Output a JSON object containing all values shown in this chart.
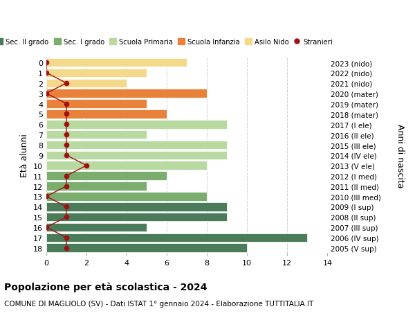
{
  "ages": [
    18,
    17,
    16,
    15,
    14,
    13,
    12,
    11,
    10,
    9,
    8,
    7,
    6,
    5,
    4,
    3,
    2,
    1,
    0
  ],
  "years": [
    "2005 (V sup)",
    "2006 (IV sup)",
    "2007 (III sup)",
    "2008 (II sup)",
    "2009 (I sup)",
    "2010 (III med)",
    "2011 (II med)",
    "2012 (I med)",
    "2013 (V ele)",
    "2014 (IV ele)",
    "2015 (III ele)",
    "2016 (II ele)",
    "2017 (I ele)",
    "2018 (mater)",
    "2019 (mater)",
    "2020 (mater)",
    "2021 (nido)",
    "2022 (nido)",
    "2023 (nido)"
  ],
  "values": [
    10,
    13,
    5,
    9,
    9,
    8,
    5,
    6,
    8,
    9,
    9,
    5,
    9,
    6,
    5,
    8,
    4,
    5,
    7
  ],
  "stranieri": [
    1,
    1,
    0,
    1,
    1,
    0,
    1,
    1,
    2,
    1,
    1,
    1,
    1,
    1,
    1,
    0,
    1,
    0,
    0
  ],
  "bar_colors": [
    "#4a7c59",
    "#4a7c59",
    "#4a7c59",
    "#4a7c59",
    "#4a7c59",
    "#7aad6e",
    "#7aad6e",
    "#7aad6e",
    "#b8d9a0",
    "#b8d9a0",
    "#b8d9a0",
    "#b8d9a0",
    "#b8d9a0",
    "#e8823a",
    "#e8823a",
    "#e8823a",
    "#f5d98b",
    "#f5d98b",
    "#f5d98b"
  ],
  "legend_labels": [
    "Sec. II grado",
    "Sec. I grado",
    "Scuola Primaria",
    "Scuola Infanzia",
    "Asilo Nido",
    "Stranieri"
  ],
  "legend_colors": [
    "#4a7c59",
    "#7aad6e",
    "#b8d9a0",
    "#e8823a",
    "#f5d98b",
    "#a01010"
  ],
  "title": "Popolazione per età scolastica - 2024",
  "subtitle": "COMUNE DI MAGLIOLO (SV) - Dati ISTAT 1° gennaio 2024 - Elaborazione TUTTITALIA.IT",
  "ylabel": "Età alunni",
  "ylabel2": "Anni di nascita",
  "xlim": [
    0,
    14
  ],
  "xticks": [
    0,
    2,
    4,
    6,
    8,
    10,
    12,
    14
  ],
  "background_color": "#ffffff",
  "grid_color": "#cccccc",
  "stranieri_color": "#a01010"
}
